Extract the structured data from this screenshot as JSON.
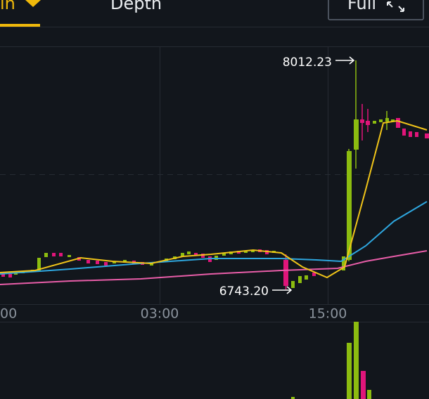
{
  "tabs": {
    "active": "in",
    "depth": "Depth",
    "full": "Full"
  },
  "chart": {
    "max_label": "8012.23",
    "min_label": "6743.20",
    "time_labels": [
      "00",
      "03:00",
      "15:00"
    ]
  }
}
